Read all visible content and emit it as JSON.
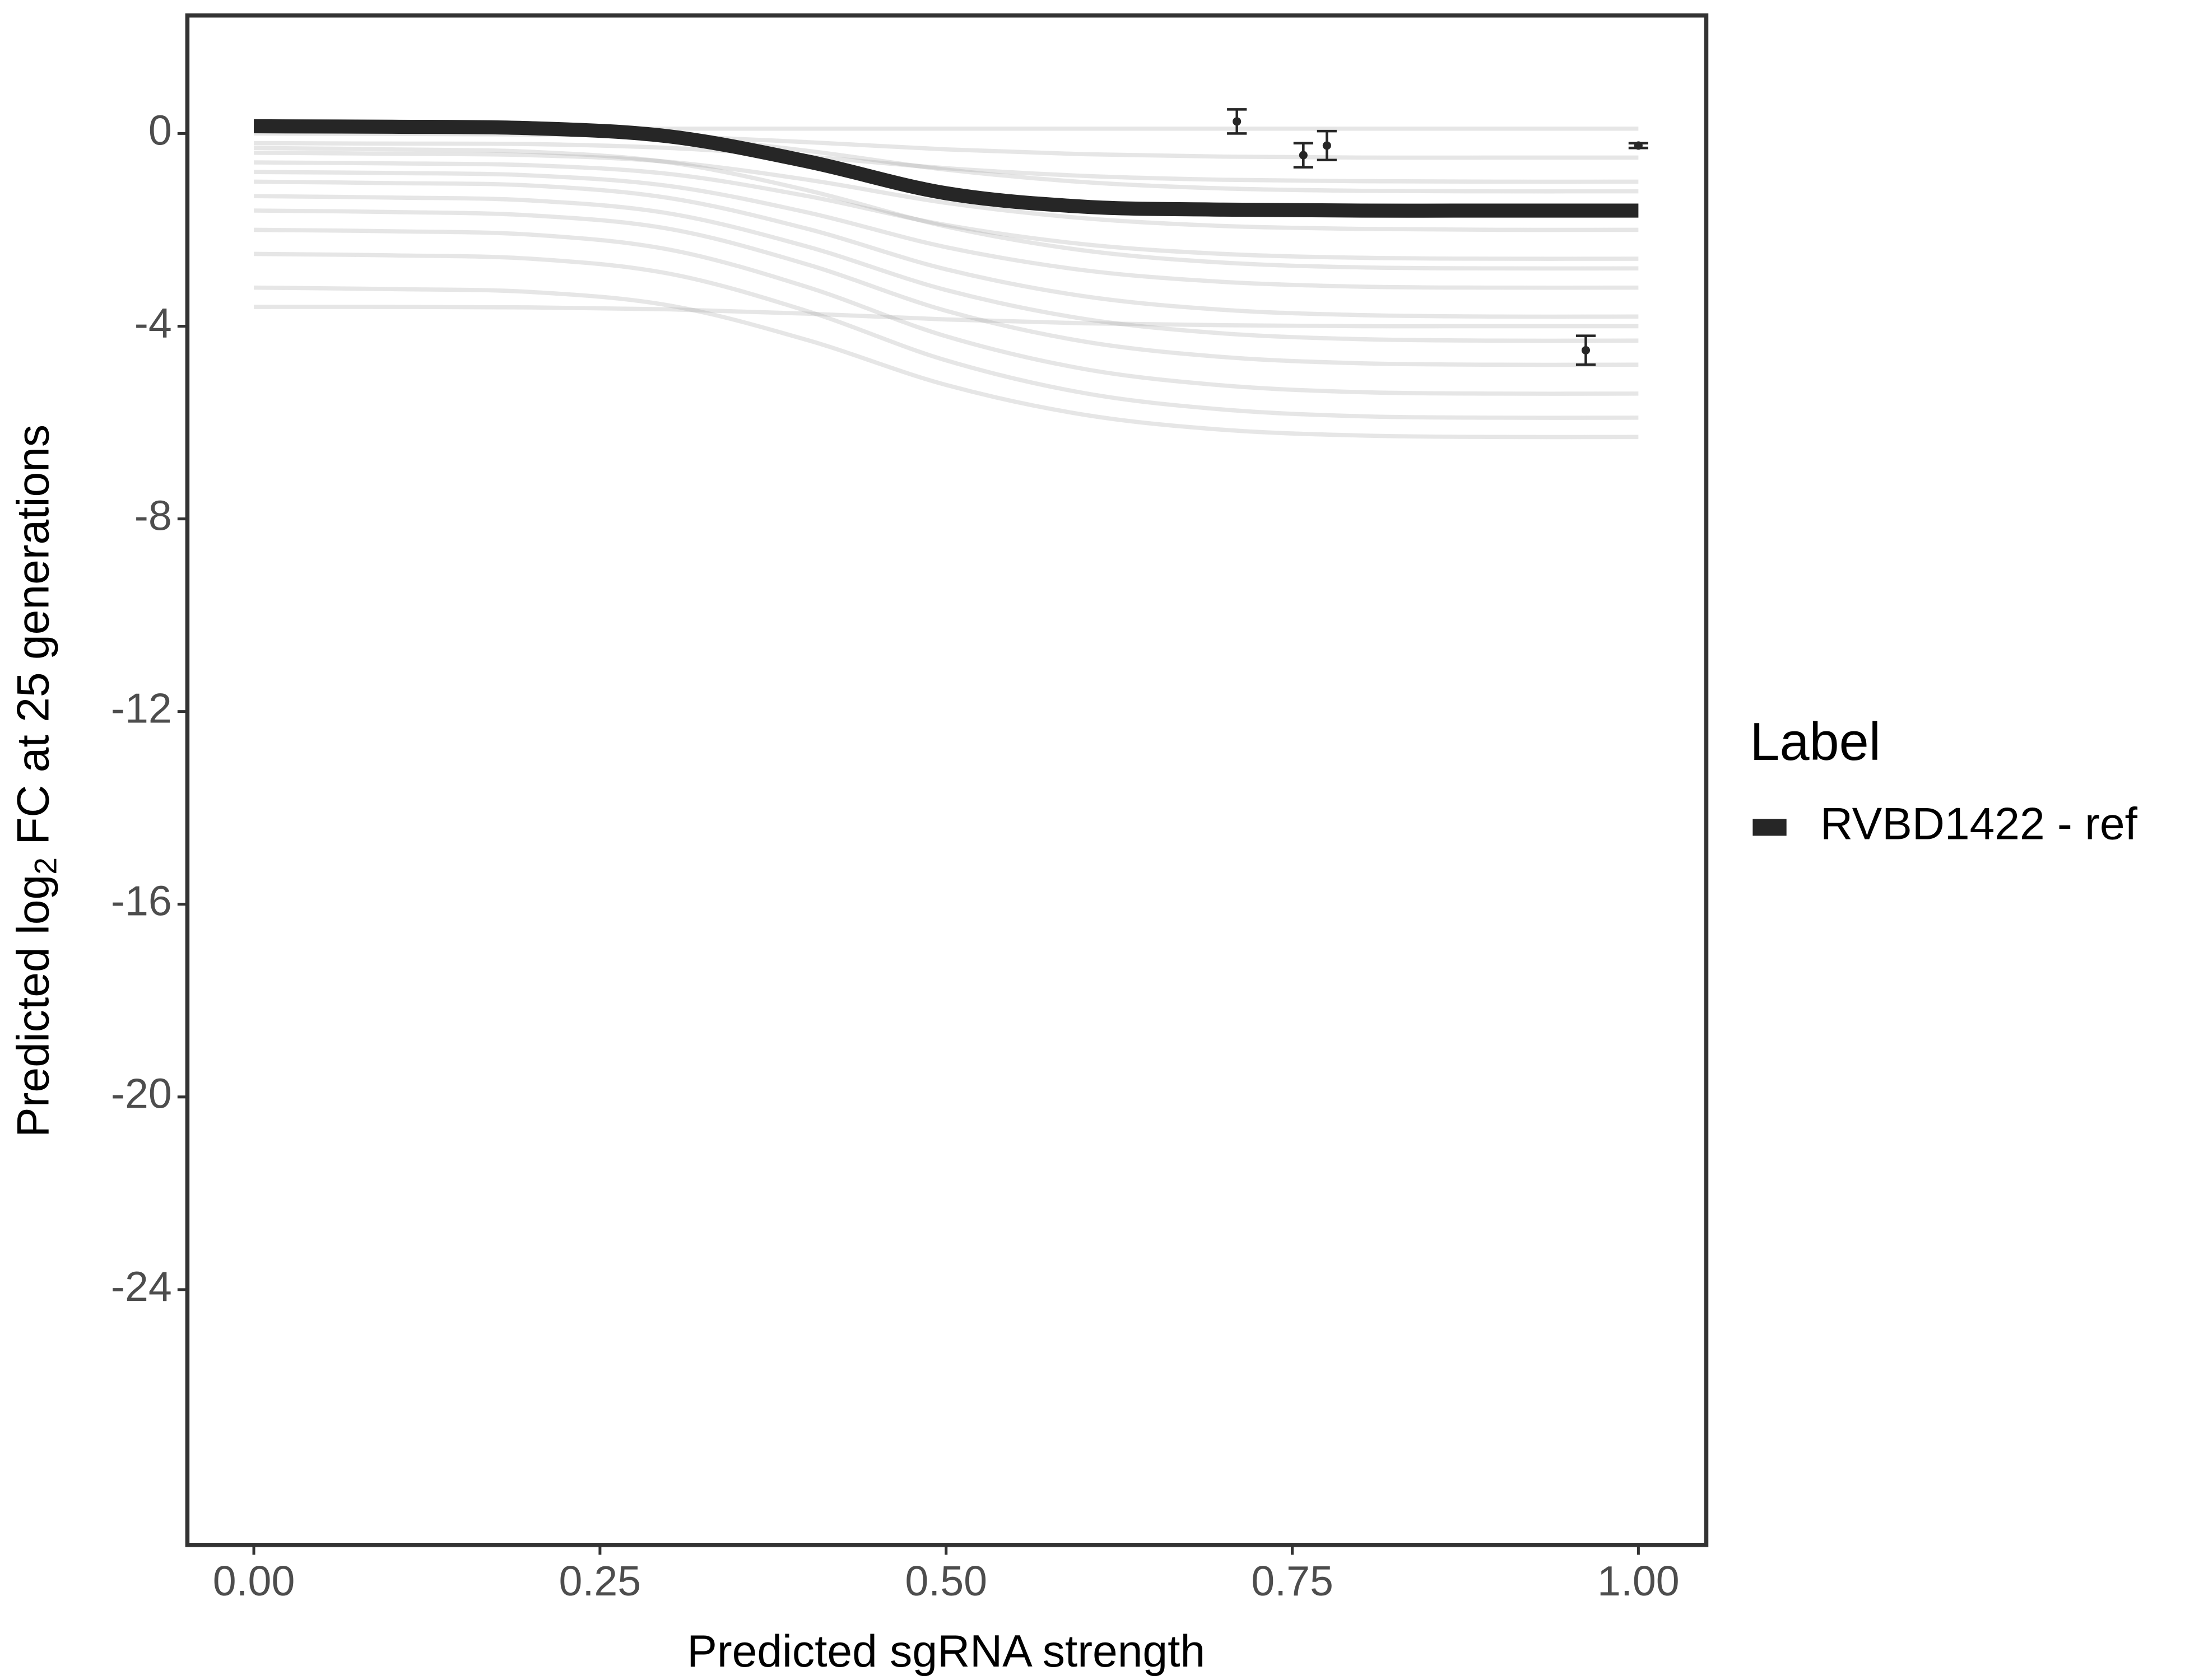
{
  "chart_data": {
    "type": "line",
    "xlabel": "Predicted sgRNA strength",
    "ylabel": [
      "Predicted  log",
      "2",
      " FC at 25 generations"
    ],
    "xlim": [
      -0.048,
      1.049
    ],
    "ylim": [
      -29.3,
      2.45
    ],
    "xticks": [
      {
        "value": 0,
        "label": "0.00"
      },
      {
        "value": 0.25,
        "label": "0.25"
      },
      {
        "value": 0.5,
        "label": "0.50"
      },
      {
        "value": 0.75,
        "label": "0.75"
      },
      {
        "value": 1,
        "label": "1.00"
      }
    ],
    "yticks": [
      0,
      -4,
      -8,
      -12,
      -16,
      -20,
      -24
    ],
    "legend_title": "Label",
    "legend_position": "right",
    "x": [
      0,
      0.1,
      0.2,
      0.3,
      0.4,
      0.5,
      0.6,
      0.7,
      0.8,
      0.9,
      1
    ],
    "series": [
      {
        "name": "RVBD1422 - ref",
        "color": "#262626",
        "values": [
          0.15,
          0.14,
          0.11,
          -0.06,
          -0.58,
          -1.24,
          -1.52,
          -1.58,
          -1.6,
          -1.6,
          -1.6
        ]
      }
    ],
    "draw_color": "#9a9a9a",
    "draws": [
      [
        0.1,
        0.1,
        0.1,
        0.1,
        0.1,
        0.1,
        0.1,
        0.1,
        0.1,
        0.1,
        0.1
      ],
      [
        0,
        -0.01,
        -0.02,
        -0.06,
        -0.18,
        -0.33,
        -0.43,
        -0.48,
        -0.5,
        -0.5,
        -0.5
      ],
      [
        -0.2,
        -0.21,
        -0.22,
        -0.3,
        -0.48,
        -0.72,
        -0.88,
        -0.96,
        -0.99,
        -1,
        -1
      ],
      [
        -0.4,
        -0.42,
        -0.45,
        -0.59,
        -0.96,
        -1.44,
        -1.76,
        -1.92,
        -1.98,
        -2,
        -2
      ],
      [
        -0.6,
        -0.62,
        -0.66,
        -0.84,
        -1.3,
        -1.9,
        -2.3,
        -2.5,
        -2.58,
        -2.6,
        -2.6
      ],
      [
        -0.8,
        -0.82,
        -0.87,
        -1.09,
        -1.64,
        -2.36,
        -2.84,
        -3.08,
        -3.18,
        -3.2,
        -3.2
      ],
      [
        -1,
        -1.03,
        -1.08,
        -1.34,
        -1.98,
        -2.82,
        -3.38,
        -3.66,
        -3.77,
        -3.8,
        -3.8
      ],
      [
        -1.3,
        -1.33,
        -1.39,
        -1.66,
        -2.35,
        -3.25,
        -3.85,
        -4.15,
        -4.27,
        -4.3,
        -4.3
      ],
      [
        -1.6,
        -1.63,
        -1.7,
        -1.98,
        -2.72,
        -3.68,
        -4.32,
        -4.64,
        -4.77,
        -4.8,
        -4.8
      ],
      [
        -2,
        -2.03,
        -2.1,
        -2.41,
        -3.19,
        -4.21,
        -4.89,
        -5.23,
        -5.37,
        -5.4,
        -5.4
      ],
      [
        -2.5,
        -2.53,
        -2.6,
        -2.91,
        -3.69,
        -4.71,
        -5.39,
        -5.73,
        -5.87,
        -5.9,
        -5.9
      ],
      [
        -3.2,
        -3.23,
        -3.29,
        -3.57,
        -4.29,
        -5.22,
        -5.84,
        -6.15,
        -6.27,
        -6.3,
        -6.3
      ],
      [
        -3.6,
        -3.6,
        -3.61,
        -3.65,
        -3.74,
        -3.86,
        -3.94,
        -3.98,
        -4,
        -4,
        -4
      ],
      [
        0.1,
        0.09,
        0.06,
        -0.06,
        -0.36,
        -0.75,
        -1.01,
        -1.14,
        -1.19,
        -1.2,
        -1.2
      ],
      [
        -0.3,
        -0.33,
        -0.38,
        -0.6,
        -1.18,
        -1.93,
        -2.43,
        -2.68,
        -2.78,
        -2.8,
        -2.8
      ]
    ],
    "points": {
      "color": "#262626",
      "x": [
        0.71,
        0.758,
        0.775,
        0.962,
        1
      ],
      "values": [
        0.25,
        -0.45,
        -0.25,
        -4.5,
        -0.25
      ],
      "errors": [
        0.25,
        0.25,
        0.3,
        0.3,
        0.05
      ]
    }
  }
}
